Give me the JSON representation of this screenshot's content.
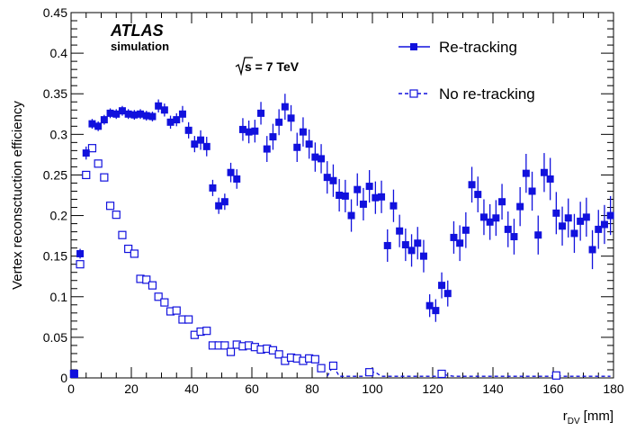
{
  "chart_data": {
    "type": "scatter",
    "xlabel": "r",
    "xlabel_sub": "DV",
    "xlabel_unit": "[mm]",
    "ylabel": "Vertex reconsctuction efficiency",
    "xlim": [
      0,
      180
    ],
    "ylim": [
      0,
      0.45
    ],
    "x_ticks": [
      0,
      20,
      40,
      60,
      80,
      100,
      120,
      140,
      160,
      180
    ],
    "y_ticks": [
      0,
      0.05,
      0.1,
      0.15,
      0.2,
      0.25,
      0.3,
      0.35,
      0.4,
      0.45
    ],
    "x_tick_labels": [
      "0",
      "20",
      "40",
      "60",
      "80",
      "100",
      "120",
      "140",
      "160",
      "180"
    ],
    "y_tick_labels": [
      "0",
      "0.05",
      "0.1",
      "0.15",
      "0.2",
      "0.25",
      "0.3",
      "0.35",
      "0.4",
      "0.45"
    ],
    "legend_position": "top-right",
    "annotations": {
      "experiment": "ATLAS",
      "subtitle": "simulation",
      "energy_sqrt": "s",
      "energy_value": " = 7 TeV"
    },
    "colors": {
      "series": "#1111dd"
    },
    "series": [
      {
        "name": "Re-tracking",
        "marker": "filled-square",
        "line": "solid",
        "x": [
          1,
          3,
          5,
          7,
          9,
          11,
          13,
          15,
          17,
          19,
          21,
          23,
          25,
          27,
          29,
          31,
          33,
          35,
          37,
          39,
          41,
          43,
          45,
          47,
          49,
          51,
          53,
          55,
          57,
          59,
          61,
          63,
          65,
          67,
          69,
          71,
          73,
          75,
          77,
          79,
          81,
          83,
          85,
          87,
          89,
          91,
          93,
          95,
          97,
          99,
          101,
          103,
          105,
          107,
          109,
          111,
          113,
          115,
          117,
          119,
          121,
          123,
          125,
          127,
          129,
          131,
          133,
          135,
          137,
          139,
          141,
          143,
          145,
          147,
          149,
          151,
          153,
          155,
          157,
          159,
          161,
          163,
          165,
          167,
          169,
          171,
          173,
          175,
          177,
          179
        ],
        "y": [
          0.005,
          0.153,
          0.277,
          0.313,
          0.31,
          0.318,
          0.326,
          0.325,
          0.329,
          0.325,
          0.324,
          0.325,
          0.323,
          0.322,
          0.335,
          0.33,
          0.315,
          0.318,
          0.325,
          0.305,
          0.288,
          0.293,
          0.285,
          0.234,
          0.212,
          0.217,
          0.253,
          0.245,
          0.306,
          0.303,
          0.304,
          0.326,
          0.282,
          0.297,
          0.315,
          0.334,
          0.32,
          0.284,
          0.303,
          0.288,
          0.272,
          0.27,
          0.247,
          0.243,
          0.225,
          0.224,
          0.2,
          0.232,
          0.214,
          0.236,
          0.222,
          0.223,
          0.163,
          0.212,
          0.181,
          0.164,
          0.157,
          0.166,
          0.15,
          0.089,
          0.083,
          0.114,
          0.104,
          0.173,
          0.166,
          0.182,
          0.238,
          0.226,
          0.198,
          0.192,
          0.197,
          0.217,
          0.183,
          0.174,
          0.211,
          0.252,
          0.23,
          0.176,
          0.253,
          0.245,
          0.203,
          0.187,
          0.197,
          0.178,
          0.193,
          0.198,
          0.158,
          0.183,
          0.189,
          0.2
        ],
        "err": [
          0.002,
          0.006,
          0.008,
          0.006,
          0.006,
          0.006,
          0.006,
          0.006,
          0.006,
          0.006,
          0.006,
          0.006,
          0.006,
          0.006,
          0.008,
          0.008,
          0.008,
          0.008,
          0.01,
          0.01,
          0.01,
          0.012,
          0.012,
          0.01,
          0.01,
          0.01,
          0.012,
          0.012,
          0.014,
          0.014,
          0.014,
          0.014,
          0.016,
          0.016,
          0.016,
          0.016,
          0.016,
          0.018,
          0.018,
          0.018,
          0.018,
          0.018,
          0.02,
          0.02,
          0.02,
          0.02,
          0.02,
          0.02,
          0.02,
          0.02,
          0.02,
          0.02,
          0.02,
          0.02,
          0.02,
          0.02,
          0.02,
          0.02,
          0.02,
          0.014,
          0.014,
          0.016,
          0.016,
          0.02,
          0.022,
          0.022,
          0.022,
          0.022,
          0.022,
          0.022,
          0.022,
          0.022,
          0.022,
          0.022,
          0.024,
          0.024,
          0.024,
          0.024,
          0.024,
          0.026,
          0.026,
          0.024,
          0.024,
          0.024,
          0.024,
          0.024,
          0.024,
          0.024,
          0.024,
          0.024
        ]
      },
      {
        "name": "No re-tracking",
        "marker": "open-square",
        "line": "dashed",
        "x": [
          1,
          3,
          5,
          7,
          9,
          11,
          13,
          15,
          17,
          19,
          21,
          23,
          25,
          27,
          29,
          31,
          33,
          35,
          37,
          39,
          41,
          43,
          45,
          47,
          49,
          51,
          53,
          55,
          57,
          59,
          61,
          63,
          65,
          67,
          69,
          71,
          73,
          75,
          77,
          79,
          81,
          83,
          85,
          87,
          89,
          91,
          93,
          95,
          97,
          99,
          101,
          103,
          105,
          107,
          109,
          111,
          113,
          115,
          117,
          119,
          121,
          123,
          125,
          127,
          129,
          131,
          133,
          135,
          137,
          139,
          141,
          143,
          145,
          147,
          149,
          151,
          153,
          155,
          157,
          159,
          161,
          163,
          165,
          167,
          169,
          171,
          173,
          175,
          177,
          179
        ],
        "y": [
          0.005,
          0.14,
          0.25,
          0.283,
          0.264,
          0.247,
          0.212,
          0.201,
          0.176,
          0.159,
          0.153,
          0.122,
          0.121,
          0.114,
          0.1,
          0.093,
          0.082,
          0.083,
          0.072,
          0.072,
          0.053,
          0.057,
          0.058,
          0.04,
          0.04,
          0.04,
          0.032,
          0.041,
          0.039,
          0.04,
          0.038,
          0.035,
          0.036,
          0.034,
          0.029,
          0.021,
          0.025,
          0.024,
          0.021,
          0.024,
          0.023,
          0.012,
          0.002,
          0.015,
          0.002,
          0.002,
          0.002,
          0.002,
          0.002,
          0.007,
          0.007,
          0.002,
          0.002,
          0.002,
          0.002,
          0.002,
          0.002,
          0.002,
          0.002,
          0.002,
          0.002,
          0.005,
          0.003,
          0.002,
          0.002,
          0.002,
          0.002,
          0.002,
          0.002,
          0.002,
          0.002,
          0.002,
          0.002,
          0.002,
          0.002,
          0.002,
          0.002,
          0.002,
          0.002,
          0.002,
          0.003,
          0.002,
          0.002,
          0.002,
          0.002,
          0.002,
          0.002,
          0.002,
          0.002,
          0.002
        ],
        "show_marker": [
          true,
          true,
          true,
          true,
          true,
          true,
          true,
          true,
          true,
          true,
          true,
          true,
          true,
          true,
          true,
          true,
          true,
          true,
          true,
          true,
          true,
          true,
          true,
          true,
          true,
          true,
          true,
          true,
          true,
          true,
          true,
          true,
          true,
          true,
          true,
          true,
          true,
          true,
          true,
          true,
          true,
          true,
          false,
          true,
          false,
          false,
          false,
          false,
          false,
          true,
          false,
          false,
          false,
          false,
          false,
          false,
          false,
          false,
          false,
          false,
          false,
          true,
          false,
          false,
          false,
          false,
          false,
          false,
          false,
          false,
          false,
          false,
          false,
          false,
          false,
          false,
          false,
          false,
          false,
          false,
          true,
          false,
          false,
          false,
          false,
          false,
          false,
          false,
          false,
          false
        ]
      }
    ]
  }
}
